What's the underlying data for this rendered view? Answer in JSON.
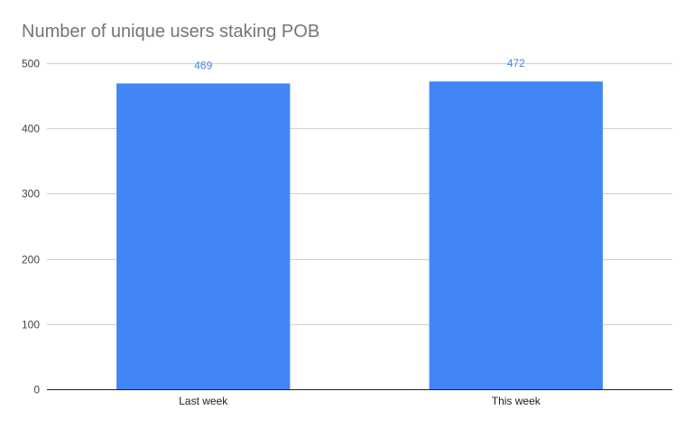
{
  "chart_data": {
    "type": "bar",
    "title": "Number of unique users staking POB",
    "xlabel": "",
    "ylabel": "",
    "categories": [
      "Last week",
      "This week"
    ],
    "values": [
      469,
      472
    ],
    "data_labels": [
      "469",
      "472"
    ],
    "y_ticks": [
      0,
      100,
      200,
      300,
      400,
      500
    ],
    "ylim": [
      0,
      500
    ],
    "grid": true,
    "legend": "none",
    "colors": {
      "bar": "#4285f4",
      "data_label": "#4a86d8",
      "gridline": "#d0d0d0",
      "axis": "#222222",
      "tick_label": "#444444",
      "title": "#757575"
    }
  }
}
